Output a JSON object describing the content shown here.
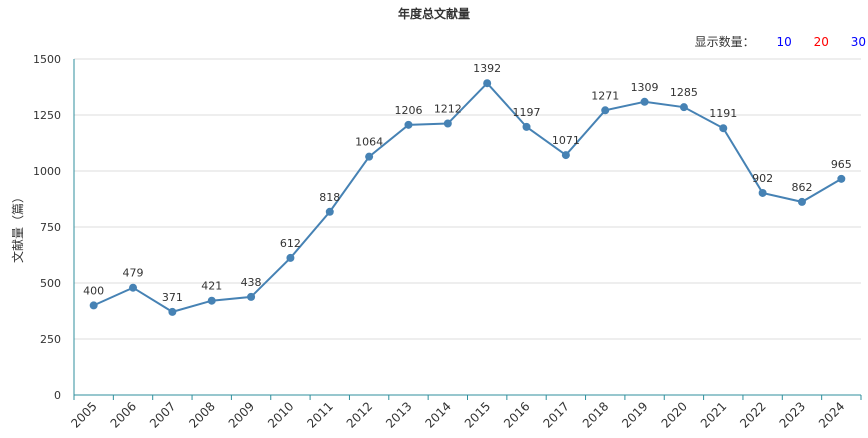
{
  "title": "年度总文献量",
  "display_count": {
    "label": "显示数量：",
    "options": [
      {
        "value": "10",
        "color": "#0000ff"
      },
      {
        "value": "20",
        "color": "#ff0000"
      },
      {
        "value": "30",
        "color": "#0000ff"
      }
    ]
  },
  "chart_data": {
    "type": "line",
    "title": "年度总文献量",
    "xlabel": "",
    "ylabel": "文献量（篇）",
    "ylim": [
      0,
      1500
    ],
    "yticks": [
      0,
      250,
      500,
      750,
      1000,
      1250,
      1500
    ],
    "grid": true,
    "x": [
      "2005",
      "2006",
      "2007",
      "2008",
      "2009",
      "2010",
      "2011",
      "2012",
      "2013",
      "2014",
      "2015",
      "2016",
      "2017",
      "2018",
      "2019",
      "2020",
      "2021",
      "2022",
      "2023",
      "2024"
    ],
    "series": [
      {
        "values": [
          400,
          479,
          371,
          421,
          438,
          612,
          818,
          1064,
          1206,
          1212,
          1392,
          1197,
          1071,
          1271,
          1309,
          1285,
          1191,
          902,
          862,
          965
        ],
        "color": "#4682b4"
      }
    ]
  }
}
